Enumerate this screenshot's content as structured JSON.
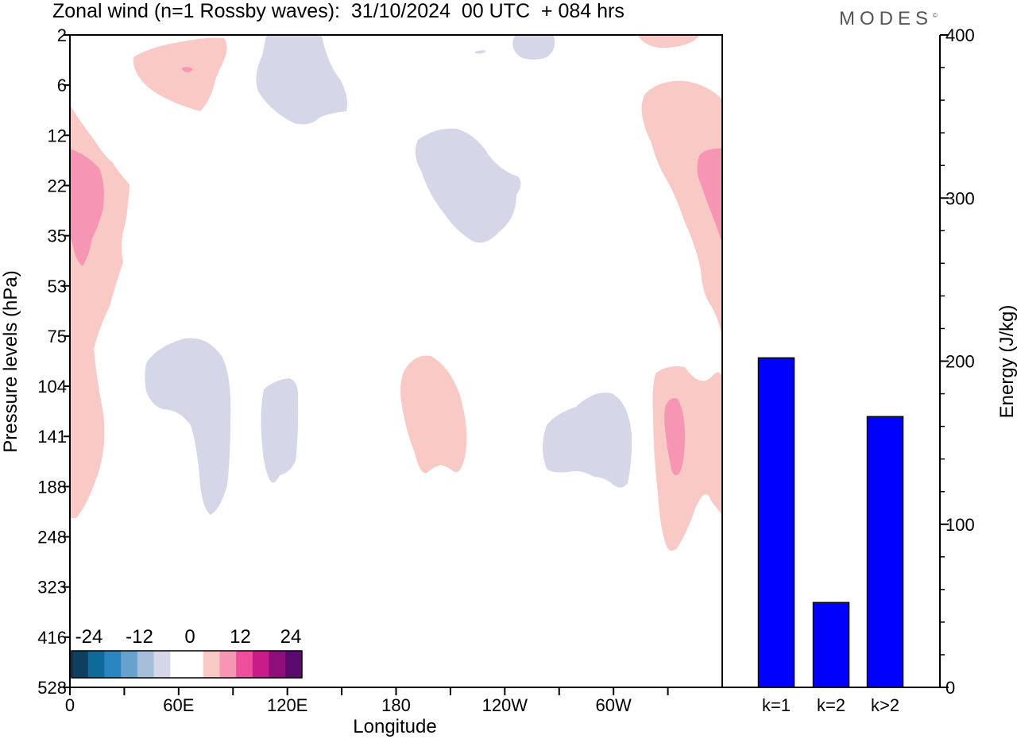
{
  "title": "Zonal wind (n=1 Rossby waves):  31/10/2024  00 UTC  + 084 hrs",
  "logo": "MODES",
  "logo_mark": "©",
  "colors": {
    "positive_light": "#f9c9c6",
    "positive_mid": "#f695b4",
    "negative_light": "#d5d7e8",
    "bar_fill": "#0000ff"
  },
  "chart_data": [
    {
      "type": "heatmap",
      "title": "Zonal wind (n=1 Rossby waves)",
      "xlabel": "Longitude",
      "ylabel": "Pressure levels (hPa)",
      "x_ticks": [
        "0",
        "60E",
        "120E",
        "180",
        "120W",
        "60W"
      ],
      "y_ticks": [
        "2",
        "6",
        "12",
        "22",
        "35",
        "53",
        "75",
        "104",
        "141",
        "188",
        "248",
        "323",
        "416",
        "528"
      ],
      "colorbar": {
        "labels": [
          "-24",
          "-12",
          "0",
          "12",
          "24"
        ],
        "colors": [
          "#0d3f5f",
          "#0f6a9a",
          "#2a86c0",
          "#66a3cc",
          "#a7bedb",
          "#d5d7e8",
          "#ffffff",
          "#ffffff",
          "#f9c9c6",
          "#f695b4",
          "#ed4f9b",
          "#c71c8a",
          "#8e0e7c",
          "#5a0a6e"
        ]
      }
    },
    {
      "type": "bar",
      "ylabel": "Energy (J/kg)",
      "categories": [
        "k=1",
        "k=2",
        "k>2"
      ],
      "values": [
        202,
        52,
        166
      ],
      "ylim": [
        0,
        400
      ],
      "y_ticks": [
        "0",
        "100",
        "200",
        "300",
        "400"
      ]
    }
  ]
}
